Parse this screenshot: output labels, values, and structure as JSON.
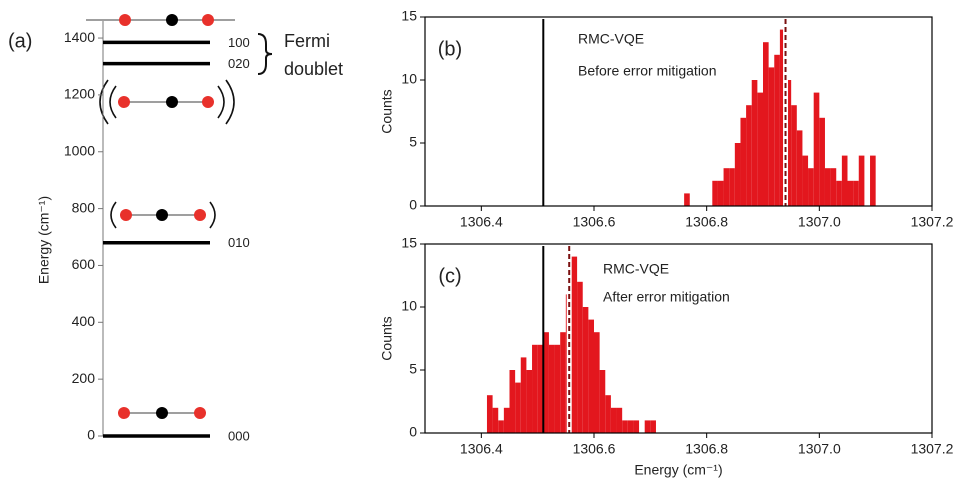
{
  "chart_data": [
    {
      "type": "levels",
      "panel_label": "(a)",
      "ylabel": "Energy (cm⁻¹)",
      "ylim": [
        0,
        1460
      ],
      "yticks": [
        0,
        200,
        400,
        600,
        800,
        1000,
        1200,
        1400
      ],
      "levels": [
        {
          "label": "000",
          "value": 0
        },
        {
          "label": "010",
          "value": 680
        },
        {
          "label": "020",
          "value": 1310
        },
        {
          "label": "100",
          "value": 1385
        }
      ],
      "annotation": [
        "Fermi",
        "doublet"
      ],
      "color": "#000000"
    },
    {
      "type": "histogram",
      "panel_label": "(b)",
      "annotations": [
        "RMC-VQE",
        "Before error mitigation"
      ],
      "ylabel": "Counts",
      "bins": [
        1306.76,
        1306.77,
        1306.78,
        1306.79,
        1306.8,
        1306.81,
        1306.82,
        1306.83,
        1306.84,
        1306.85,
        1306.86,
        1306.87,
        1306.88,
        1306.89,
        1306.9,
        1306.91,
        1306.92,
        1306.93,
        1306.94,
        1306.95,
        1306.96,
        1306.97,
        1306.98,
        1306.99,
        1307,
        1307.01,
        1307.02,
        1307.03,
        1307.04,
        1307.05,
        1307.06,
        1307.07,
        1307.08,
        1307.09,
        1307.1
      ],
      "counts": [
        1,
        0,
        0,
        0,
        0,
        2,
        2,
        3,
        3,
        5,
        7,
        8,
        10,
        9,
        13,
        11,
        12,
        14,
        10,
        8,
        6,
        4,
        3,
        9,
        7,
        3,
        3,
        2,
        4,
        2,
        2,
        4,
        0,
        4
      ],
      "color": "#e3171e",
      "xlim": [
        1306.3,
        1307.2
      ],
      "xticks": [
        1306.4,
        1306.6,
        1306.8,
        {
          "value": 1307,
          "label": "1307.0"
        },
        1307.2
      ],
      "ylim": [
        0,
        15
      ],
      "yticks": [
        0,
        5,
        10,
        15
      ],
      "vlines": [
        {
          "x": 1306.51,
          "color": "#000000",
          "style": "solid"
        },
        {
          "x": 1306.94,
          "color": "#7a1010",
          "style": "dashed"
        }
      ]
    },
    {
      "type": "histogram",
      "panel_label": "(c)",
      "annotations": [
        "RMC-VQE",
        "After error mitigation"
      ],
      "ylabel": "Counts",
      "xlabel": "Energy (cm⁻¹)",
      "bins": [
        1306.41,
        1306.42,
        1306.43,
        1306.44,
        1306.45,
        1306.46,
        1306.47,
        1306.48,
        1306.49,
        1306.5,
        1306.51,
        1306.52,
        1306.53,
        1306.54,
        1306.55,
        1306.56,
        1306.57,
        1306.58,
        1306.59,
        1306.6,
        1306.61,
        1306.62,
        1306.63,
        1306.64,
        1306.65,
        1306.66,
        1306.67,
        1306.68,
        1306.69,
        1306.7,
        1306.71
      ],
      "counts": [
        3,
        2,
        1,
        2,
        5,
        4,
        6,
        5,
        7,
        7,
        8,
        7,
        7,
        8,
        11,
        14,
        12,
        10,
        9,
        8,
        5,
        3,
        2,
        2,
        1,
        1,
        1,
        0,
        1,
        1
      ],
      "color": "#e3171e",
      "xlim": [
        1306.3,
        1307.2
      ],
      "xticks": [
        1306.4,
        1306.6,
        1306.8,
        {
          "value": 1307,
          "label": "1307.0"
        },
        1307.2
      ],
      "ylim": [
        0,
        15
      ],
      "yticks": [
        0,
        5,
        10,
        15
      ],
      "vlines": [
        {
          "x": 1306.51,
          "color": "#000000",
          "style": "solid"
        },
        {
          "x": 1306.556,
          "color": "#7a1010",
          "style": "dashed"
        }
      ]
    }
  ]
}
